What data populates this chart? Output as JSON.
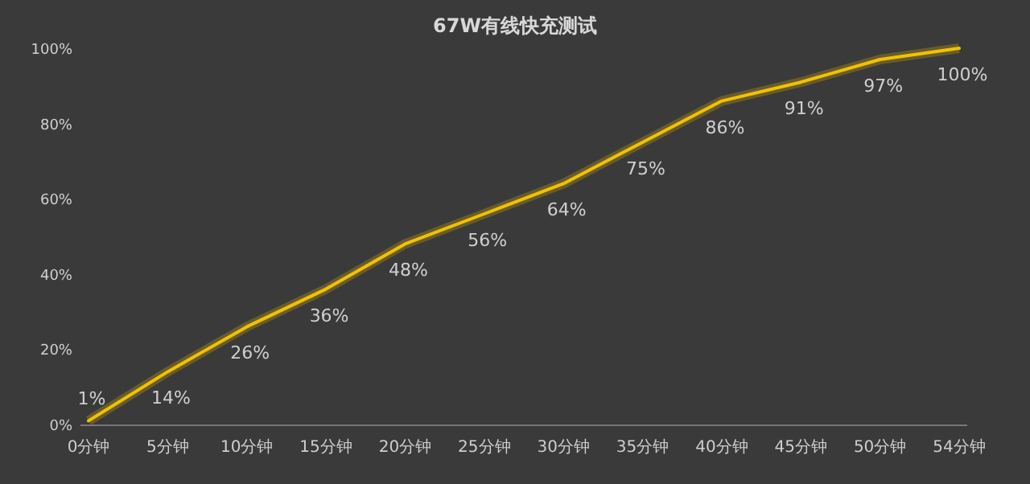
{
  "chart_data": {
    "type": "line",
    "title": "67W有线快充测试",
    "categories": [
      "0分钟",
      "5分钟",
      "10分钟",
      "15分钟",
      "20分钟",
      "25分钟",
      "30分钟",
      "35分钟",
      "40分钟",
      "45分钟",
      "50分钟",
      "54分钟"
    ],
    "series": [
      {
        "color": "#f2c200",
        "values": [
          1,
          14,
          26,
          36,
          48,
          56,
          64,
          75,
          86,
          91,
          97,
          100
        ],
        "value_labels": [
          "1%",
          "14%",
          "26%",
          "36%",
          "48%",
          "56%",
          "64%",
          "75%",
          "86%",
          "91%",
          "97%",
          "100%"
        ]
      }
    ],
    "ylim": [
      0,
      100
    ],
    "yticks": [
      {
        "value": 0,
        "label": "0%"
      },
      {
        "value": 20,
        "label": "20%"
      },
      {
        "value": 40,
        "label": "40%"
      },
      {
        "value": 60,
        "label": "60%"
      },
      {
        "value": 80,
        "label": "80%"
      },
      {
        "value": 100,
        "label": "100%"
      }
    ],
    "grid": false,
    "marker": "none",
    "line_style": "solid"
  }
}
